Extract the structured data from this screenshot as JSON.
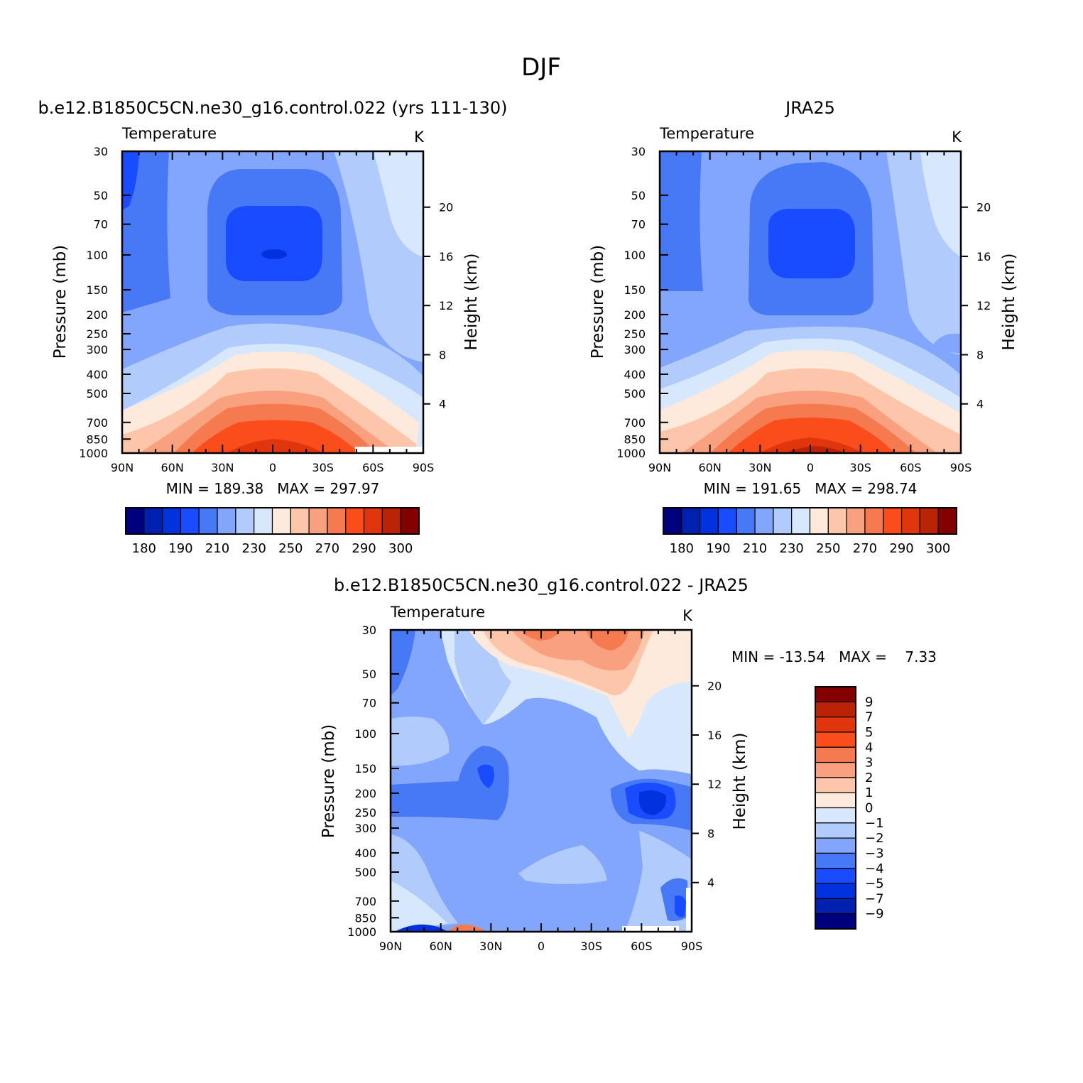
{
  "title": "DJF",
  "colors": {
    "abs_scale": [
      "#00007f",
      "#0021b0",
      "#0033dd",
      "#1a4cff",
      "#4778f5",
      "#82a6fb",
      "#b1cbfc",
      "#d8e8fc",
      "#feeadc",
      "#fdc6aa",
      "#f9a17f",
      "#f67a50",
      "#fb4d1b",
      "#e1360d",
      "#bb2306",
      "#840000"
    ],
    "diff_scale": [
      "#00007f",
      "#0021b0",
      "#0033dd",
      "#1a4cff",
      "#4778f5",
      "#82a6fb",
      "#b1cbfc",
      "#d8e8fc",
      "#feeadc",
      "#fdc6aa",
      "#f9a17f",
      "#f67a50",
      "#fb4d1b",
      "#e1360d",
      "#bb2306",
      "#840000"
    ]
  },
  "chart_data": [
    {
      "type": "heatmap",
      "title": "b.e12.B1850C5CN.ne30_g16.control.022 (yrs 111-130)",
      "variable": "Temperature",
      "units": "K",
      "ylabel": "Pressure (mb)",
      "ylabel_right": "Height (km)",
      "x_ticks": [
        "90N",
        "60N",
        "30N",
        "0",
        "30S",
        "60S",
        "90S"
      ],
      "y_ticks": [
        30,
        50,
        70,
        100,
        150,
        200,
        250,
        300,
        400,
        500,
        700,
        850,
        1000
      ],
      "y_right_ticks": [
        4,
        8,
        12,
        16,
        20
      ],
      "ylim": [
        1000,
        30
      ],
      "y_scale": "log",
      "min": "189.38",
      "max": "297.97",
      "min_label": "MIN",
      "max_label": "MAX",
      "colorbar": {
        "orientation": "horizontal",
        "labels": [
          "180",
          "190",
          "210",
          "230",
          "250",
          "270",
          "290",
          "300"
        ]
      }
    },
    {
      "type": "heatmap",
      "title": "JRA25",
      "variable": "Temperature",
      "units": "K",
      "ylabel": "Pressure (mb)",
      "ylabel_right": "Height (km)",
      "x_ticks": [
        "90N",
        "60N",
        "30N",
        "0",
        "30S",
        "60S",
        "90S"
      ],
      "y_ticks": [
        30,
        50,
        70,
        100,
        150,
        200,
        250,
        300,
        400,
        500,
        700,
        850,
        1000
      ],
      "y_right_ticks": [
        4,
        8,
        12,
        16,
        20
      ],
      "ylim": [
        1000,
        30
      ],
      "y_scale": "log",
      "min": "191.65",
      "max": "298.74",
      "min_label": "MIN",
      "max_label": "MAX",
      "colorbar": {
        "orientation": "horizontal",
        "labels": [
          "180",
          "190",
          "210",
          "230",
          "250",
          "270",
          "290",
          "300"
        ]
      }
    },
    {
      "type": "heatmap",
      "title": "b.e12.B1850C5CN.ne30_g16.control.022 - JRA25",
      "variable": "Temperature",
      "units": "K",
      "ylabel": "Pressure (mb)",
      "ylabel_right": "Height (km)",
      "x_ticks": [
        "90N",
        "60N",
        "30N",
        "0",
        "30S",
        "60S",
        "90S"
      ],
      "y_ticks": [
        30,
        50,
        70,
        100,
        150,
        200,
        250,
        300,
        400,
        500,
        700,
        850,
        1000
      ],
      "y_right_ticks": [
        4,
        8,
        12,
        16,
        20
      ],
      "ylim": [
        1000,
        30
      ],
      "y_scale": "log",
      "min": "-13.54",
      "max": "7.33",
      "min_label": "MIN",
      "max_label": "MAX",
      "colorbar": {
        "orientation": "vertical",
        "labels": [
          "9",
          "7",
          "5",
          "4",
          "3",
          "2",
          "1",
          "0",
          "-1",
          "-2",
          "-3",
          "-4",
          "-5",
          "-7",
          "-9"
        ]
      }
    }
  ]
}
